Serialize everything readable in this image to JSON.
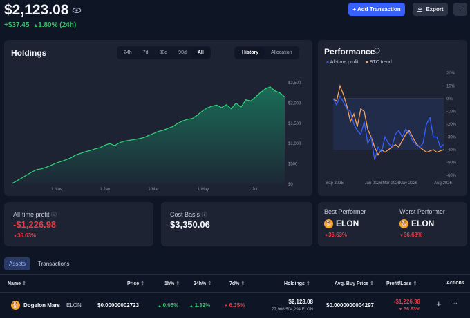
{
  "header": {
    "balance": "$2,123.08",
    "change_abs": "+$37.45",
    "change_pct": "1.80% (24h)",
    "add_transaction_label": "+ Add Transaction",
    "export_label": "Export",
    "more_label": "···"
  },
  "holdings": {
    "title": "Holdings",
    "ranges": [
      "24h",
      "7d",
      "30d",
      "90d",
      "All"
    ],
    "active_range": "All",
    "views": [
      "History",
      "Allocation"
    ],
    "active_view": "History",
    "y_ticks": [
      "$2,500",
      "$2,000",
      "$1,500",
      "$1,000",
      "$500",
      "$0"
    ],
    "x_ticks": [
      "1 Nov",
      "1 Jan",
      "1 Mar",
      "1 May",
      "1 Jul"
    ]
  },
  "chart_data": [
    {
      "type": "area",
      "title": "Holdings",
      "x_ticks": [
        "1 Nov",
        "1 Jan",
        "1 Mar",
        "1 May",
        "1 Jul"
      ],
      "ylim": [
        0,
        2500
      ],
      "y_ticks": [
        0,
        500,
        1000,
        1500,
        2000,
        2500
      ],
      "series": [
        {
          "values": [
            20,
            90,
            160,
            230,
            300,
            360,
            380,
            420,
            470,
            520,
            560,
            600,
            650,
            720,
            760,
            800,
            830,
            870,
            900,
            960,
            1000,
            950,
            1020,
            1060,
            1080,
            1100,
            1120,
            1150,
            1200,
            1250,
            1300,
            1330,
            1380,
            1420,
            1500,
            1560,
            1600,
            1620,
            1700,
            1800,
            1880,
            1920,
            1950,
            1890,
            1960,
            1860,
            2000,
            1900,
            2080,
            2050,
            2150,
            2260,
            2350,
            2400,
            2300,
            2250,
            2150
          ]
        }
      ]
    },
    {
      "type": "line",
      "title": "Performance",
      "x_ticks": [
        "Sep 2025",
        "Jan 2026",
        "Mar 2026",
        "May 2026",
        "Aug 2026"
      ],
      "ylim": [
        -60,
        20
      ],
      "y_ticks": [
        "20%",
        "10%",
        "0%",
        "-10%",
        "-20%",
        "-30%",
        "-40%",
        "-50%",
        "-60%"
      ],
      "legend": "top-left",
      "series": [
        {
          "name": "All-time profit",
          "color": "#3861fb",
          "values": [
            0,
            -5,
            2,
            -3,
            -8,
            -10,
            -20,
            -25,
            -28,
            -18,
            -35,
            -30,
            -48,
            -38,
            -42,
            -30,
            -35,
            -38,
            -28,
            -25,
            -30,
            -24,
            -27,
            -33,
            -36,
            -38,
            -35,
            -20,
            -15,
            -30,
            -30,
            -38,
            -36
          ]
        },
        {
          "name": "BTC trend",
          "color": "#f7a35c",
          "values": [
            0,
            -2,
            10,
            3,
            -6,
            -18,
            -12,
            -22,
            -8,
            -10,
            -24,
            -30,
            -38,
            -44,
            -40,
            -42,
            -40,
            -38,
            -36,
            -38,
            -33,
            -28,
            -25,
            -30,
            -35,
            -38,
            -40,
            -42,
            -41,
            -40,
            -42,
            -41,
            -40
          ]
        }
      ]
    }
  ],
  "performance": {
    "title": "Performance",
    "legend": [
      "All-time profit",
      "BTC trend"
    ],
    "y_ticks": [
      "20%",
      "10%",
      "0%",
      "-10%",
      "-20%",
      "-30%",
      "-40%",
      "-50%",
      "-60%"
    ],
    "x_ticks": [
      "Sep 2025",
      "Jan 2026",
      "Mar 2026",
      "May 2026",
      "Aug 2026"
    ]
  },
  "stats": {
    "profit_label": "All-time profit",
    "profit_value": "-$1,226.98",
    "profit_pct": "36.63%",
    "cost_label": "Cost Basis",
    "cost_value": "$3,350.06",
    "best_label": "Best Performer",
    "best_symbol": "ELON",
    "best_pct": "36.63%",
    "worst_label": "Worst Performer",
    "worst_symbol": "ELON",
    "worst_pct": "36.63%"
  },
  "tabs": [
    "Assets",
    "Transactions"
  ],
  "active_tab": "Assets",
  "table": {
    "headers": [
      "Name",
      "Price",
      "1h%",
      "24h%",
      "7d%",
      "Holdings",
      "Avg. Buy Price",
      "Profit/Loss",
      "Actions"
    ],
    "rows": [
      {
        "name": "Dogelon Mars",
        "symbol": "ELON",
        "price": "$0.00000002723",
        "h1": "0.05%",
        "h24": "1.32%",
        "d7": "6.35%",
        "holdings_value": "$2,123.08",
        "holdings_amount": "77,966,504,294 ELON",
        "avg_buy": "$0.0000000004297",
        "pl_value": "-$1,226.98",
        "pl_pct": "36.63%"
      }
    ]
  },
  "colors": {
    "accent": "#3861fb",
    "positive": "#33c16a",
    "negative": "#ea3943",
    "btc": "#f7a35c"
  }
}
